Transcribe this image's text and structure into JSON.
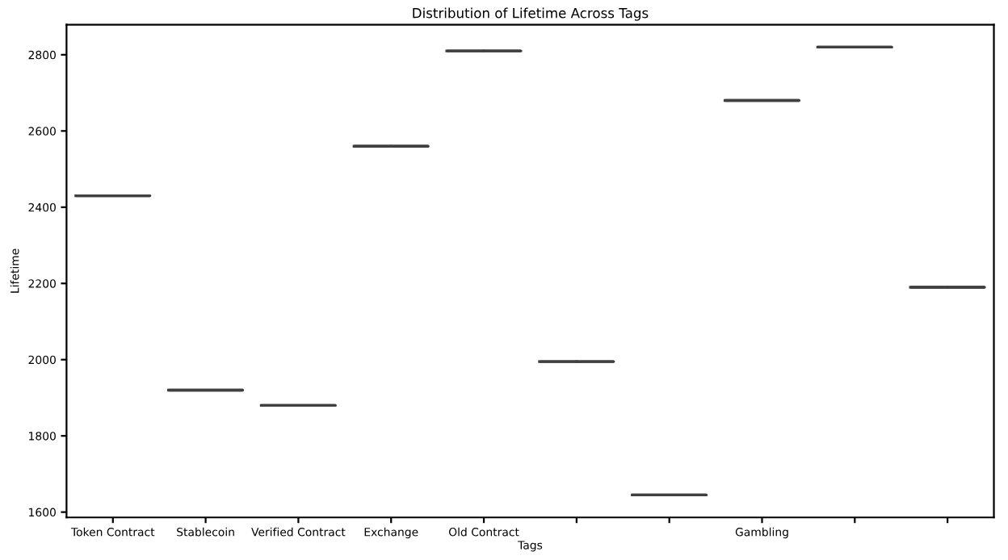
{
  "chart_data": {
    "type": "box",
    "title": "Distribution of Lifetime Across Tags",
    "xlabel": "Tags",
    "ylabel": "Lifetime",
    "categories": [
      "Token Contract",
      "Stablecoin",
      "Verified Contract",
      "Exchange",
      "Old Contract",
      null,
      null,
      "Gambling",
      null,
      null
    ],
    "boxes": [
      {
        "low": 2430,
        "q1": 2430,
        "median": 2430,
        "q3": 2430,
        "high": 2430
      },
      {
        "low": 1920,
        "q1": 1920,
        "median": 1920,
        "q3": 1920,
        "high": 1920
      },
      {
        "low": 1880,
        "q1": 1880,
        "median": 1880,
        "q3": 1880,
        "high": 1880
      },
      {
        "low": 2560,
        "q1": 2560,
        "median": 2560,
        "q3": 2560,
        "high": 2560
      },
      {
        "low": 2810,
        "q1": 2810,
        "median": 2810,
        "q3": 2810,
        "high": 2810
      },
      {
        "low": 1995,
        "q1": 1995,
        "median": 1995,
        "q3": 1995,
        "high": 1995
      },
      {
        "low": 1645,
        "q1": 1645,
        "median": 1645,
        "q3": 1645,
        "high": 1645
      },
      {
        "low": 2680,
        "q1": 2680,
        "median": 2680,
        "q3": 2680,
        "high": 2680
      },
      {
        "low": 2820,
        "q1": 2820,
        "median": 2820,
        "q3": 2820,
        "high": 2820
      },
      {
        "low": 2190,
        "q1": 2190,
        "median": 2190,
        "q3": 2190,
        "high": 2190
      }
    ],
    "color": "#404040",
    "ylim": [
      1586,
      2879
    ],
    "yticks": [
      1600,
      1800,
      2000,
      2200,
      2400,
      2600,
      2800
    ],
    "grid": false
  }
}
